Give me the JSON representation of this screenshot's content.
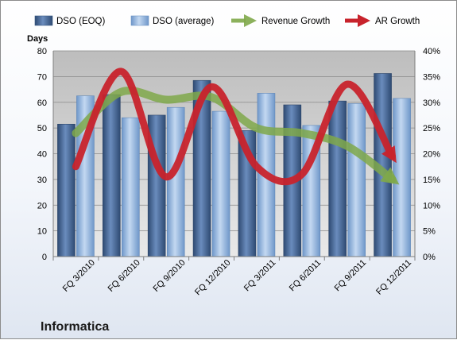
{
  "chart_data": {
    "type": "bar",
    "company": "Informatica",
    "y_left_label": "Days",
    "y_left_lim": [
      0,
      80
    ],
    "y_left_ticks": [
      "0",
      "10",
      "20",
      "30",
      "40",
      "50",
      "60",
      "70",
      "80"
    ],
    "y_right_lim": [
      0,
      0.4
    ],
    "y_right_ticks": [
      "0%",
      "5%",
      "10%",
      "15%",
      "20%",
      "25%",
      "30%",
      "35%",
      "40%"
    ],
    "categories": [
      "FQ 3/2010",
      "FQ 6/2010",
      "FQ 9/2010",
      "FQ 12/2010",
      "FQ 3/2011",
      "FQ 6/2011",
      "FQ 9/2011",
      "FQ 12/2011"
    ],
    "bar_series": [
      {
        "name": "DSO (EOQ)",
        "values": [
          51.5,
          63,
          55,
          68.5,
          49,
          59,
          60.5,
          71.2
        ],
        "color": "#4a6b9b"
      },
      {
        "name": "DSO (average)",
        "values": [
          62.5,
          54,
          58,
          56.5,
          63.5,
          51,
          59.5,
          61.5
        ],
        "color": "#8fb3dd"
      }
    ],
    "line_series": [
      {
        "name": "Revenue Growth",
        "axis": "right",
        "values": [
          0.24,
          0.32,
          0.305,
          0.31,
          0.25,
          0.24,
          0.215,
          0.15
        ],
        "color": "#7fa84a"
      },
      {
        "name": "AR Growth",
        "axis": "right",
        "values": [
          0.175,
          0.36,
          0.155,
          0.33,
          0.175,
          0.16,
          0.335,
          0.195
        ],
        "color": "#c8232c"
      }
    ],
    "grid": true,
    "legend_position": "top"
  }
}
